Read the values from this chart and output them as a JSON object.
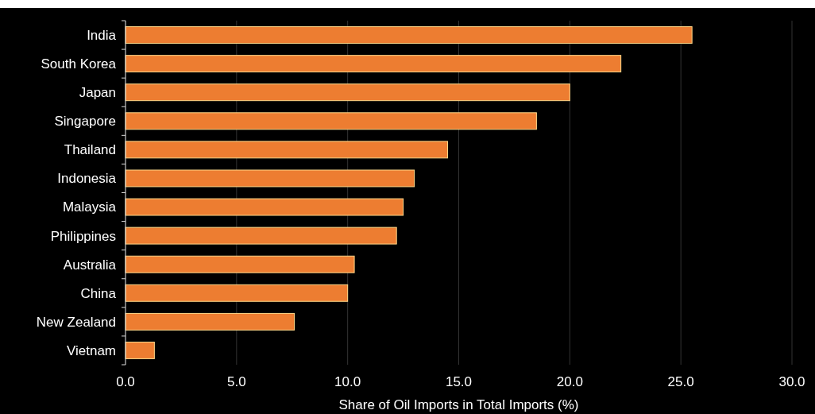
{
  "chart_data": {
    "type": "bar",
    "orientation": "horizontal",
    "xlabel": "Share of Oil Imports in Total Imports (%)",
    "categories": [
      "India",
      "South Korea",
      "Japan",
      "Singapore",
      "Thailand",
      "Indonesia",
      "Malaysia",
      "Philippines",
      "Australia",
      "China",
      "New Zealand",
      "Vietnam"
    ],
    "values": [
      25.5,
      22.3,
      20.0,
      18.5,
      14.5,
      13.0,
      12.5,
      12.2,
      10.3,
      10.0,
      7.6,
      1.3
    ],
    "color": "#ed7d31",
    "xlim": [
      0,
      30
    ],
    "xticks": [
      {
        "value": 0,
        "label": "0.0"
      },
      {
        "value": 5,
        "label": "5.0"
      },
      {
        "value": 10,
        "label": "10.0"
      },
      {
        "value": 15,
        "label": "15.0"
      },
      {
        "value": 20,
        "label": "20.0"
      },
      {
        "value": 25,
        "label": "25.0"
      },
      {
        "value": 30,
        "label": "30.0"
      }
    ],
    "grid": "x"
  }
}
